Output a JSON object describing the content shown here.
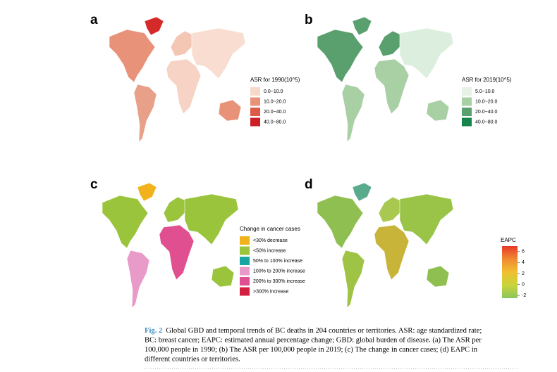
{
  "panels": [
    {
      "label": "a",
      "legend": {
        "title": "ASR for 1990(10^5)",
        "items": [
          {
            "label": "0.0~10.0",
            "color": "#f7d9cc"
          },
          {
            "label": "10.0~20.0",
            "color": "#e8927a"
          },
          {
            "label": "20.0~40.0",
            "color": "#de5a48"
          },
          {
            "label": "40.0~80.0",
            "color": "#cf1f26"
          }
        ]
      }
    },
    {
      "label": "b",
      "legend": {
        "title": "ASR for 2019(10^5)",
        "items": [
          {
            "label": "5.0~10.0",
            "color": "#e6f2e5"
          },
          {
            "label": "10.0~20.0",
            "color": "#a9cfa5"
          },
          {
            "label": "20.0~40.0",
            "color": "#5aa06e"
          },
          {
            "label": "40.0~80.0",
            "color": "#16834a"
          }
        ]
      }
    },
    {
      "label": "c",
      "legend": {
        "title": "Change in cancer cases",
        "items": [
          {
            "label": "<30% decrease",
            "color": "#f2b21b"
          },
          {
            "label": "<50% increase",
            "color": "#9ac43c"
          },
          {
            "label": "50% to 100% increase",
            "color": "#1aa5a5"
          },
          {
            "label": "100% to 200% increase",
            "color": "#e89ac8"
          },
          {
            "label": "200% to 300% increase",
            "color": "#e05090"
          },
          {
            "label": ">300% increase",
            "color": "#d42040"
          }
        ]
      }
    },
    {
      "label": "d",
      "colorbar": {
        "title": "EAPC",
        "ticks": [
          6,
          4,
          2,
          0,
          -2
        ],
        "range": [
          -2.5,
          7
        ],
        "colors": [
          "#8cc65a",
          "#c8d43c",
          "#f0c030",
          "#f08a30",
          "#e83a2a"
        ]
      }
    }
  ],
  "figure": {
    "label": "Fig. 2",
    "caption_lines": [
      "Global GBD and temporal trends of BC deaths in 204 countries or territories. ASR: age standardized rate;",
      "BC: breast cancer; EAPC: estimated annual percentage change; GBD: global burden of disease. (a) The ASR per",
      "100,000 people in 1990; (b) The ASR per 100,000 people in 2019; (c) The change in cancer cases; (d) EAPC in",
      "different countries or territories."
    ]
  }
}
